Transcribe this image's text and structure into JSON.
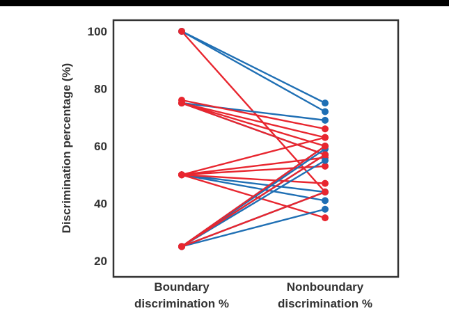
{
  "chart_data": {
    "type": "line",
    "title": "",
    "ylabel": "Discrimination percentage (%)",
    "xlabel": "",
    "categories": [
      [
        "Boundary",
        "discrimination %"
      ],
      [
        "Nonboundary",
        "discrimination %"
      ]
    ],
    "ylim": [
      20,
      100
    ],
    "yticks": [
      20,
      40,
      60,
      80,
      100
    ],
    "grid": false,
    "legend": "none",
    "colors": {
      "blue": "#1f6fb4",
      "red": "#e8262f",
      "axis": "#333333",
      "top_rule": "#000000"
    },
    "series": [
      {
        "color": "blue",
        "values": [
          100,
          75
        ]
      },
      {
        "color": "blue",
        "values": [
          100,
          72
        ]
      },
      {
        "color": "red",
        "values": [
          100,
          44
        ]
      },
      {
        "color": "blue",
        "values": [
          75,
          69
        ]
      },
      {
        "color": "blue",
        "values": [
          75,
          57
        ]
      },
      {
        "color": "red",
        "values": [
          76,
          66
        ]
      },
      {
        "color": "red",
        "values": [
          75,
          63
        ]
      },
      {
        "color": "red",
        "values": [
          75,
          60
        ]
      },
      {
        "color": "red",
        "values": [
          75,
          57
        ]
      },
      {
        "color": "blue",
        "values": [
          50,
          44
        ]
      },
      {
        "color": "blue",
        "values": [
          50,
          41
        ]
      },
      {
        "color": "red",
        "values": [
          50,
          56
        ]
      },
      {
        "color": "red",
        "values": [
          50,
          53
        ]
      },
      {
        "color": "red",
        "values": [
          50,
          47
        ]
      },
      {
        "color": "red",
        "values": [
          50,
          35
        ]
      },
      {
        "color": "red",
        "values": [
          50,
          63
        ]
      },
      {
        "color": "blue",
        "values": [
          25,
          60
        ]
      },
      {
        "color": "blue",
        "values": [
          25,
          59
        ]
      },
      {
        "color": "blue",
        "values": [
          25,
          57
        ]
      },
      {
        "color": "blue",
        "values": [
          25,
          55
        ]
      },
      {
        "color": "blue",
        "values": [
          25,
          44
        ]
      },
      {
        "color": "blue",
        "values": [
          25,
          38
        ]
      },
      {
        "color": "red",
        "values": [
          25,
          60
        ]
      },
      {
        "color": "red",
        "values": [
          25,
          57
        ]
      },
      {
        "color": "red",
        "values": [
          25,
          44
        ]
      }
    ]
  }
}
